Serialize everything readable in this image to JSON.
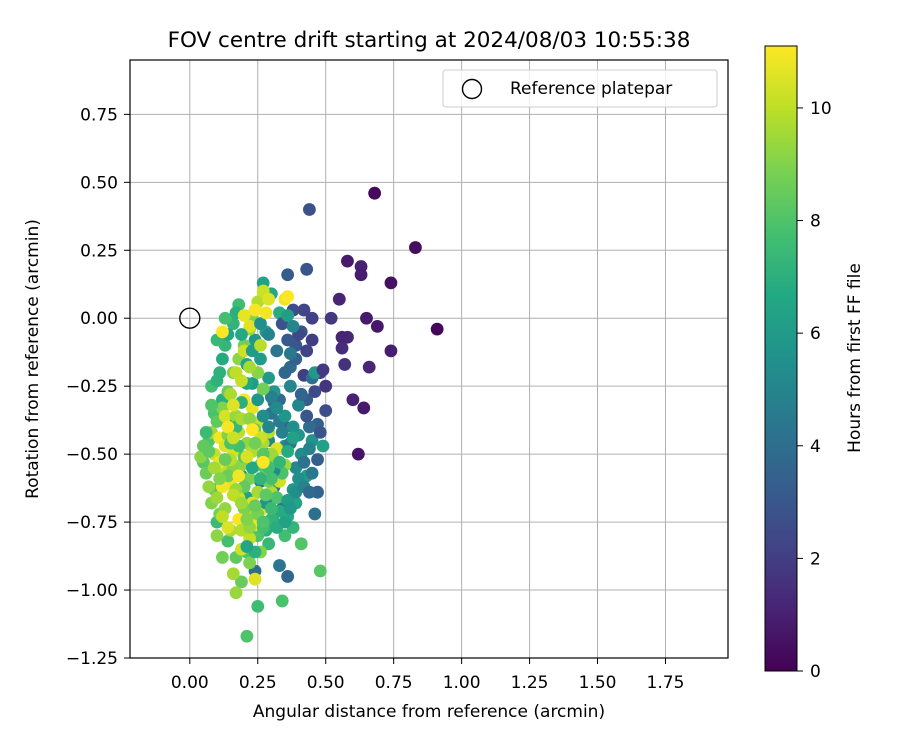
{
  "chart_data": {
    "type": "scatter",
    "title": "FOV centre drift starting at 2024/08/03 10:55:38",
    "xlabel": "Angular distance from reference (arcmin)",
    "ylabel": "Rotation from reference (arcmin)",
    "xlim": [
      -0.22,
      1.98
    ],
    "ylim": [
      -1.25,
      0.95
    ],
    "xticks": [
      "0.00",
      "0.25",
      "0.50",
      "0.75",
      "1.00",
      "1.25",
      "1.50",
      "1.75"
    ],
    "xtick_values": [
      0,
      0.25,
      0.5,
      0.75,
      1.0,
      1.25,
      1.5,
      1.75
    ],
    "yticks": [
      "0.75",
      "0.50",
      "0.25",
      "0.00",
      "−0.25",
      "−0.50",
      "−0.75",
      "−1.00",
      "−1.25"
    ],
    "ytick_values": [
      0.75,
      0.5,
      0.25,
      0,
      -0.25,
      -0.5,
      -0.75,
      -1.0,
      -1.25
    ],
    "grid": true,
    "legend": {
      "placement": "top-right",
      "entries": [
        "Reference platepar"
      ]
    },
    "reference_point": {
      "x": 0.0,
      "y": 0.0
    },
    "colorbar": {
      "label": "Hours from first FF file",
      "min": 0,
      "max": 11.1,
      "ticks": [
        "0",
        "2",
        "4",
        "6",
        "8",
        "10"
      ],
      "tick_values": [
        0,
        2,
        4,
        6,
        8,
        10
      ],
      "colormap": "viridis"
    },
    "points": [
      [
        0.68,
        0.46,
        0.3
      ],
      [
        0.83,
        0.26,
        0.4
      ],
      [
        0.91,
        -0.04,
        0.2
      ],
      [
        0.74,
        0.13,
        0.5
      ],
      [
        0.58,
        0.21,
        0.8
      ],
      [
        0.63,
        0.19,
        1.0
      ],
      [
        0.63,
        0.16,
        0.9
      ],
      [
        0.55,
        0.07,
        1.1
      ],
      [
        0.65,
        0.0,
        0.8
      ],
      [
        0.69,
        -0.03,
        0.7
      ],
      [
        0.58,
        -0.07,
        1.2
      ],
      [
        0.56,
        -0.07,
        1.1
      ],
      [
        0.56,
        -0.11,
        1.4
      ],
      [
        0.57,
        -0.17,
        1.6
      ],
      [
        0.66,
        -0.18,
        1.2
      ],
      [
        0.74,
        -0.12,
        0.9
      ],
      [
        0.6,
        -0.3,
        1.0
      ],
      [
        0.64,
        -0.33,
        0.8
      ],
      [
        0.62,
        -0.5,
        0.6
      ],
      [
        0.52,
        0.0,
        1.8
      ],
      [
        0.44,
        0.4,
        2.7
      ],
      [
        0.43,
        0.18,
        2.9
      ],
      [
        0.36,
        0.16,
        3.2
      ],
      [
        0.42,
        0.03,
        2.3
      ],
      [
        0.45,
        0.0,
        2.1
      ],
      [
        0.48,
        -0.2,
        1.9
      ],
      [
        0.5,
        -0.25,
        1.7
      ],
      [
        0.42,
        -0.21,
        2.0
      ],
      [
        0.47,
        -0.39,
        3.4
      ],
      [
        0.47,
        -0.64,
        3.6
      ],
      [
        0.46,
        -0.72,
        4.1
      ],
      [
        0.41,
        -0.05,
        2.8
      ],
      [
        0.39,
        -0.1,
        3.0
      ],
      [
        0.43,
        -0.3,
        3.3
      ],
      [
        0.45,
        -0.22,
        4.0
      ],
      [
        0.37,
        -0.18,
        3.8
      ],
      [
        0.35,
        -0.4,
        3.5
      ],
      [
        0.33,
        -0.3,
        3.9
      ],
      [
        0.3,
        -0.35,
        4.2
      ],
      [
        0.28,
        -0.5,
        4.5
      ],
      [
        0.31,
        -0.62,
        4.4
      ],
      [
        0.34,
        -0.7,
        4.1
      ],
      [
        0.36,
        -0.95,
        3.7
      ],
      [
        0.33,
        -0.91,
        4.3
      ],
      [
        0.24,
        -0.93,
        3.9
      ],
      [
        0.26,
        -0.6,
        4.6
      ],
      [
        0.29,
        -0.45,
        5.0
      ],
      [
        0.39,
        -0.55,
        5.2
      ],
      [
        0.41,
        -0.5,
        5.4
      ],
      [
        0.45,
        -0.45,
        5.6
      ],
      [
        0.44,
        -0.48,
        4.9
      ],
      [
        0.4,
        -0.43,
        5.7
      ],
      [
        0.38,
        -0.4,
        5.5
      ],
      [
        0.35,
        -0.47,
        5.3
      ],
      [
        0.32,
        -0.58,
        4.8
      ],
      [
        0.27,
        0.13,
        6.4
      ],
      [
        0.3,
        0.09,
        6.6
      ],
      [
        0.33,
        0.02,
        6.9
      ],
      [
        0.28,
        -0.05,
        6.2
      ],
      [
        0.24,
        -0.08,
        5.9
      ],
      [
        0.26,
        -0.15,
        6.1
      ],
      [
        0.29,
        -0.22,
        6.0
      ],
      [
        0.31,
        -0.27,
        5.8
      ],
      [
        0.37,
        -0.25,
        5.1
      ],
      [
        0.4,
        -0.32,
        5.0
      ],
      [
        0.46,
        -0.2,
        5.9
      ],
      [
        0.49,
        -0.47,
        6.3
      ],
      [
        0.43,
        -0.58,
        6.1
      ],
      [
        0.39,
        -0.68,
        6.5
      ],
      [
        0.36,
        -0.73,
        6.7
      ],
      [
        0.31,
        -0.75,
        6.8
      ],
      [
        0.28,
        -0.78,
        7.0
      ],
      [
        0.23,
        -0.73,
        6.6
      ],
      [
        0.21,
        -0.66,
        6.3
      ],
      [
        0.19,
        -0.58,
        6.0
      ],
      [
        0.17,
        -0.48,
        5.8
      ],
      [
        0.15,
        -0.37,
        6.4
      ],
      [
        0.12,
        -0.3,
        6.9
      ],
      [
        0.11,
        -0.2,
        7.1
      ],
      [
        0.13,
        -0.1,
        7.3
      ],
      [
        0.16,
        -0.02,
        7.2
      ],
      [
        0.18,
        0.05,
        7.6
      ],
      [
        0.13,
        0.0,
        7.8
      ],
      [
        0.1,
        -0.08,
        7.4
      ],
      [
        0.08,
        -0.25,
        7.7
      ],
      [
        0.09,
        -0.35,
        7.9
      ],
      [
        0.07,
        -0.45,
        8.0
      ],
      [
        0.05,
        -0.53,
        8.2
      ],
      [
        0.09,
        -0.63,
        8.1
      ],
      [
        0.1,
        -0.75,
        7.5
      ],
      [
        0.14,
        -0.82,
        7.8
      ],
      [
        0.17,
        -0.88,
        8.3
      ],
      [
        0.21,
        -0.86,
        7.9
      ],
      [
        0.25,
        -0.8,
        8.0
      ],
      [
        0.29,
        -0.83,
        7.4
      ],
      [
        0.35,
        -0.8,
        7.7
      ],
      [
        0.38,
        -0.77,
        7.3
      ],
      [
        0.41,
        -0.83,
        8.1
      ],
      [
        0.48,
        -0.93,
        8.2
      ],
      [
        0.34,
        -1.04,
        7.9
      ],
      [
        0.25,
        -1.06,
        7.6
      ],
      [
        0.21,
        -1.17,
        8.0
      ],
      [
        0.19,
        -0.97,
        8.5
      ],
      [
        0.22,
        -0.9,
        8.9
      ],
      [
        0.17,
        -1.01,
        9.4
      ],
      [
        0.16,
        -0.94,
        9.6
      ],
      [
        0.12,
        -0.88,
        8.7
      ],
      [
        0.1,
        -0.8,
        9.2
      ],
      [
        0.11,
        -0.72,
        8.8
      ],
      [
        0.08,
        -0.68,
        9.0
      ],
      [
        0.07,
        -0.62,
        9.3
      ],
      [
        0.06,
        -0.57,
        8.6
      ],
      [
        0.04,
        -0.51,
        9.1
      ],
      [
        0.05,
        -0.47,
        8.4
      ],
      [
        0.08,
        -0.42,
        9.5
      ],
      [
        0.1,
        -0.38,
        8.3
      ],
      [
        0.12,
        -0.33,
        9.0
      ],
      [
        0.14,
        -0.27,
        8.5
      ],
      [
        0.16,
        -0.2,
        8.9
      ],
      [
        0.18,
        -0.15,
        9.2
      ],
      [
        0.2,
        -0.1,
        8.7
      ],
      [
        0.22,
        -0.04,
        9.4
      ],
      [
        0.23,
        0.01,
        9.0
      ],
      [
        0.25,
        0.06,
        9.8
      ],
      [
        0.27,
        0.1,
        10.2
      ],
      [
        0.29,
        0.07,
        10.5
      ],
      [
        0.35,
        0.07,
        10.8
      ],
      [
        0.24,
        0.03,
        11.0
      ],
      [
        0.22,
        -0.03,
        10.6
      ],
      [
        0.2,
        -0.12,
        10.3
      ],
      [
        0.17,
        -0.2,
        10.0
      ],
      [
        0.15,
        -0.28,
        9.7
      ],
      [
        0.13,
        -0.36,
        10.4
      ],
      [
        0.11,
        -0.44,
        10.9
      ],
      [
        0.09,
        -0.5,
        10.1
      ],
      [
        0.12,
        -0.56,
        9.9
      ],
      [
        0.15,
        -0.61,
        10.7
      ],
      [
        0.18,
        -0.66,
        10.2
      ],
      [
        0.21,
        -0.72,
        9.6
      ],
      [
        0.24,
        -0.76,
        10.8
      ],
      [
        0.27,
        -0.7,
        10.5
      ],
      [
        0.3,
        -0.64,
        9.8
      ],
      [
        0.33,
        -0.6,
        10.3
      ],
      [
        0.35,
        -0.54,
        9.5
      ],
      [
        0.32,
        -0.48,
        10.6
      ],
      [
        0.29,
        -0.42,
        9.9
      ],
      [
        0.26,
        -0.38,
        10.1
      ],
      [
        0.23,
        -0.33,
        10.7
      ],
      [
        0.2,
        -0.3,
        11.0
      ],
      [
        0.17,
        -0.36,
        9.4
      ],
      [
        0.14,
        -0.43,
        9.0
      ],
      [
        0.16,
        -0.49,
        10.4
      ],
      [
        0.19,
        -0.54,
        9.2
      ],
      [
        0.22,
        -0.59,
        8.8
      ],
      [
        0.25,
        -0.64,
        9.6
      ],
      [
        0.28,
        -0.57,
        8.5
      ],
      [
        0.31,
        -0.52,
        8.9
      ],
      [
        0.27,
        -0.46,
        9.7
      ],
      [
        0.24,
        -0.41,
        8.6
      ],
      [
        0.21,
        -0.46,
        9.3
      ],
      [
        0.18,
        -0.42,
        10.0
      ],
      [
        0.16,
        -0.55,
        9.1
      ],
      [
        0.2,
        -0.62,
        8.4
      ],
      [
        0.23,
        -0.68,
        10.6
      ],
      [
        0.26,
        -0.54,
        8.2
      ],
      [
        0.29,
        -0.6,
        8.7
      ],
      [
        0.32,
        -0.66,
        8.0
      ],
      [
        0.34,
        -0.57,
        7.9
      ],
      [
        0.3,
        -0.5,
        9.5
      ],
      [
        0.26,
        -0.44,
        10.2
      ],
      [
        0.23,
        -0.49,
        9.8
      ],
      [
        0.2,
        -0.51,
        8.1
      ],
      [
        0.18,
        -0.47,
        7.7
      ],
      [
        0.15,
        -0.52,
        9.9
      ],
      [
        0.13,
        -0.47,
        10.5
      ],
      [
        0.11,
        -0.53,
        10.8
      ],
      [
        0.14,
        -0.58,
        8.6
      ],
      [
        0.17,
        -0.63,
        9.4
      ],
      [
        0.2,
        -0.7,
        8.9
      ],
      [
        0.22,
        -0.81,
        10.1
      ],
      [
        0.26,
        -0.86,
        9.0
      ],
      [
        0.24,
        -0.96,
        10.6
      ],
      [
        0.19,
        -0.85,
        10.3
      ],
      [
        0.15,
        -0.78,
        9.7
      ],
      [
        0.13,
        -0.7,
        9.3
      ],
      [
        0.12,
        -0.62,
        10.9
      ],
      [
        0.09,
        -0.55,
        9.6
      ],
      [
        0.07,
        -0.49,
        8.3
      ],
      [
        0.06,
        -0.42,
        7.5
      ],
      [
        0.08,
        -0.32,
        8.0
      ],
      [
        0.1,
        -0.23,
        7.1
      ],
      [
        0.12,
        -0.15,
        6.8
      ],
      [
        0.14,
        -0.06,
        6.5
      ],
      [
        0.17,
        0.02,
        7.0
      ],
      [
        0.19,
        -0.06,
        6.7
      ],
      [
        0.21,
        -0.17,
        6.4
      ],
      [
        0.23,
        -0.24,
        6.0
      ],
      [
        0.25,
        -0.3,
        5.7
      ],
      [
        0.27,
        -0.36,
        5.4
      ],
      [
        0.29,
        -0.4,
        5.1
      ],
      [
        0.34,
        -0.42,
        4.8
      ],
      [
        0.37,
        -0.46,
        4.5
      ],
      [
        0.42,
        -0.53,
        4.2
      ],
      [
        0.44,
        -0.4,
        3.9
      ],
      [
        0.41,
        -0.28,
        3.6
      ],
      [
        0.39,
        -0.15,
        3.4
      ],
      [
        0.36,
        -0.08,
        3.1
      ],
      [
        0.34,
        -0.02,
        2.8
      ],
      [
        0.38,
        0.03,
        2.6
      ],
      [
        0.4,
        -0.06,
        2.4
      ],
      [
        0.43,
        -0.12,
        2.2
      ],
      [
        0.45,
        -0.08,
        2.0
      ],
      [
        0.49,
        -0.19,
        1.8
      ],
      [
        0.46,
        -0.27,
        2.5
      ],
      [
        0.43,
        -0.36,
        3.0
      ],
      [
        0.4,
        -0.59,
        5.5
      ],
      [
        0.38,
        -0.63,
        5.9
      ],
      [
        0.36,
        -0.67,
        6.2
      ],
      [
        0.33,
        -0.71,
        6.8
      ],
      [
        0.3,
        -0.74,
        7.2
      ],
      [
        0.27,
        -0.77,
        7.8
      ],
      [
        0.24,
        -0.86,
        7.0
      ],
      [
        0.21,
        -0.84,
        6.5
      ],
      [
        0.28,
        -0.68,
        5.8
      ],
      [
        0.31,
        -0.56,
        5.2
      ],
      [
        0.33,
        -0.38,
        4.6
      ],
      [
        0.31,
        -0.31,
        4.0
      ],
      [
        0.35,
        -0.2,
        3.7
      ],
      [
        0.32,
        -0.12,
        4.3
      ],
      [
        0.29,
        -0.06,
        4.9
      ],
      [
        0.26,
        -0.02,
        5.5
      ],
      [
        0.23,
        -0.12,
        6.1
      ],
      [
        0.21,
        -0.24,
        6.6
      ],
      [
        0.19,
        -0.31,
        7.0
      ],
      [
        0.17,
        -0.4,
        7.4
      ],
      [
        0.15,
        -0.46,
        7.9
      ],
      [
        0.13,
        -0.52,
        8.5
      ],
      [
        0.11,
        -0.59,
        9.0
      ],
      [
        0.1,
        -0.66,
        9.5
      ],
      [
        0.12,
        -0.73,
        10.0
      ],
      [
        0.14,
        -0.77,
        10.5
      ],
      [
        0.18,
        -0.74,
        11.0
      ],
      [
        0.19,
        -0.78,
        9.8
      ],
      [
        0.22,
        -0.77,
        9.3
      ],
      [
        0.25,
        -0.72,
        8.8
      ],
      [
        0.28,
        -0.65,
        8.3
      ],
      [
        0.3,
        -0.59,
        7.8
      ],
      [
        0.33,
        -0.53,
        7.3
      ],
      [
        0.36,
        -0.49,
        6.8
      ],
      [
        0.38,
        -0.44,
        6.3
      ],
      [
        0.35,
        -0.36,
        5.8
      ],
      [
        0.32,
        -0.33,
        5.3
      ],
      [
        0.3,
        -0.29,
        4.8
      ],
      [
        0.27,
        -0.26,
        8.7
      ],
      [
        0.25,
        -0.2,
        9.1
      ],
      [
        0.22,
        -0.18,
        9.6
      ],
      [
        0.19,
        -0.23,
        10.1
      ],
      [
        0.16,
        -0.32,
        10.6
      ],
      [
        0.14,
        -0.4,
        11.0
      ],
      [
        0.16,
        -0.44,
        10.2
      ],
      [
        0.19,
        -0.37,
        9.7
      ],
      [
        0.22,
        -0.37,
        9.2
      ],
      [
        0.24,
        -0.46,
        8.7
      ],
      [
        0.27,
        -0.5,
        8.2
      ],
      [
        0.29,
        -0.55,
        7.7
      ],
      [
        0.26,
        -0.59,
        7.2
      ],
      [
        0.23,
        -0.55,
        6.7
      ],
      [
        0.21,
        -0.51,
        10.4
      ],
      [
        0.18,
        -0.58,
        10.9
      ],
      [
        0.16,
        -0.65,
        10.0
      ],
      [
        0.19,
        -0.68,
        9.5
      ],
      [
        0.21,
        -0.74,
        9.0
      ],
      [
        0.24,
        -0.69,
        8.5
      ],
      [
        0.27,
        -0.75,
        8.0
      ],
      [
        0.3,
        -0.7,
        7.5
      ],
      [
        0.32,
        -0.77,
        6.9
      ],
      [
        0.35,
        -0.75,
        6.4
      ],
      [
        0.37,
        -0.7,
        5.9
      ],
      [
        0.39,
        -0.64,
        5.4
      ],
      [
        0.42,
        -0.62,
        4.9
      ],
      [
        0.45,
        -0.57,
        4.4
      ],
      [
        0.44,
        -0.64,
        3.8
      ],
      [
        0.47,
        -0.52,
        3.3
      ],
      [
        0.48,
        -0.42,
        2.9
      ],
      [
        0.5,
        -0.34,
        2.6
      ],
      [
        0.36,
        0.01,
        6.2
      ],
      [
        0.38,
        -0.03,
        5.0
      ],
      [
        0.37,
        -0.13,
        4.4
      ],
      [
        0.26,
        -0.1,
        9.9
      ],
      [
        0.2,
        0.01,
        10.7
      ],
      [
        0.28,
        0.02,
        10.9
      ],
      [
        0.36,
        0.08,
        11.1
      ],
      [
        0.23,
        -0.41,
        11.1
      ],
      [
        0.12,
        -0.05,
        11.1
      ],
      [
        0.27,
        -0.53,
        11.1
      ]
    ]
  }
}
